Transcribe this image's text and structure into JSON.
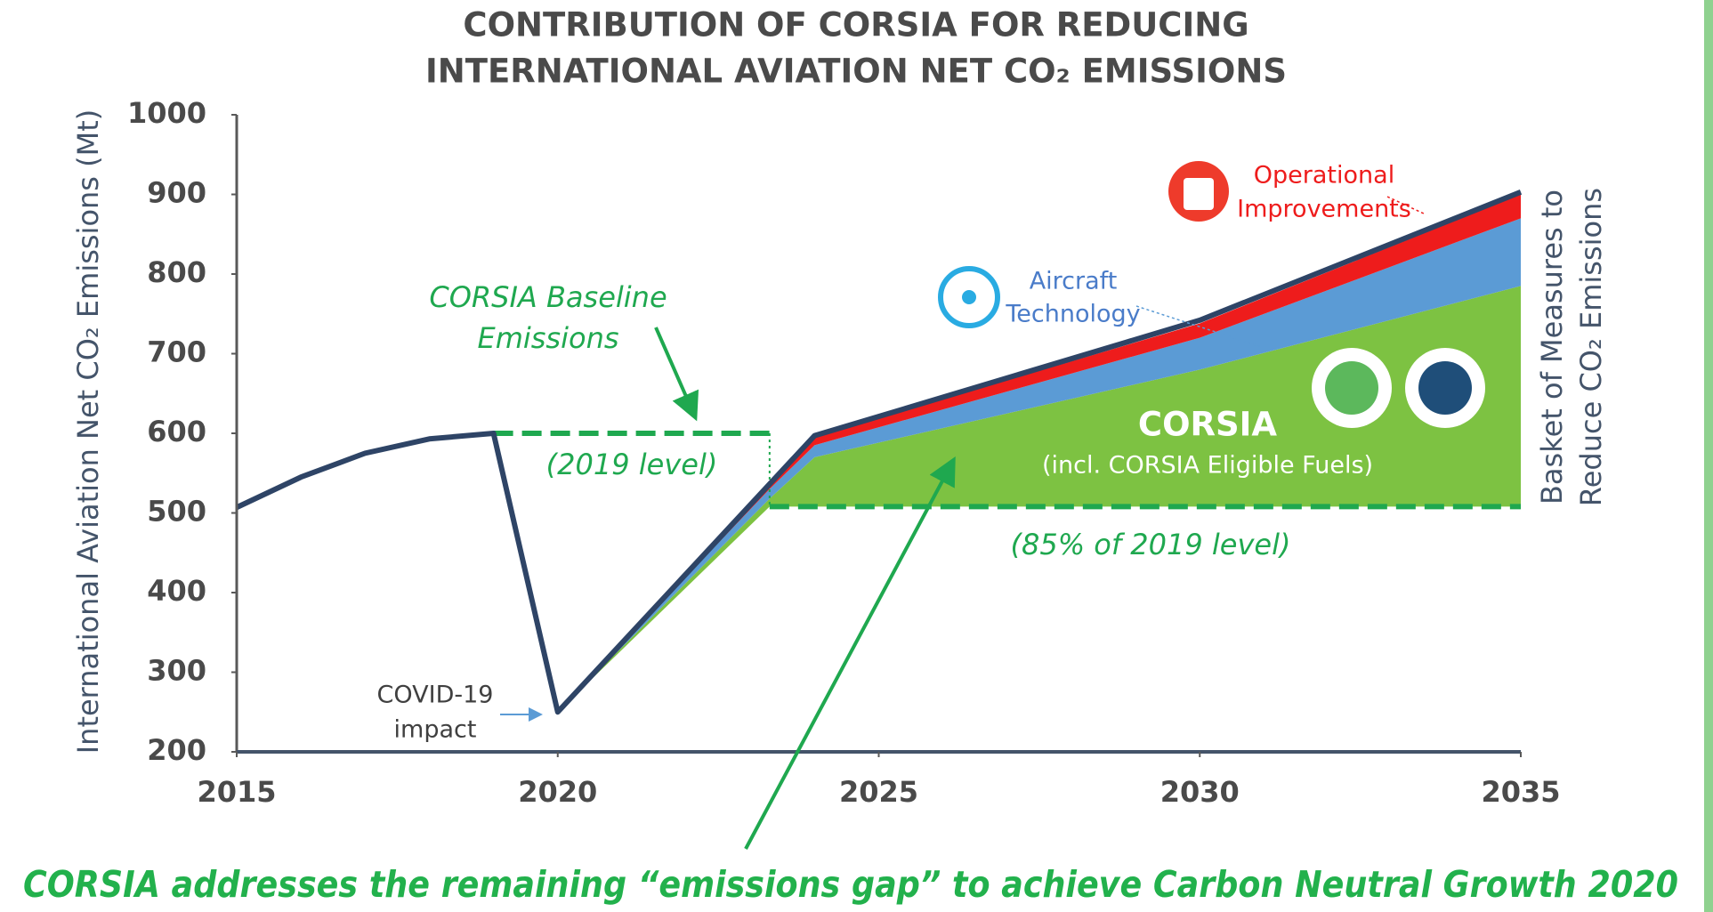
{
  "chart_data": {
    "type": "stacked-area",
    "title": [
      "CONTRIBUTION OF CORSIA FOR REDUCING",
      "INTERNATIONAL AVIATION NET CO₂ EMISSIONS"
    ],
    "ylabel": "International Aviation Net CO₂ Emissions (Mt)",
    "right_label": [
      "Basket of Measures to",
      "Reduce CO₂ Emissions"
    ],
    "xlim": [
      2015,
      2035
    ],
    "xticks": [
      2015,
      2020,
      2025,
      2030,
      2035
    ],
    "ylim": [
      200,
      1000
    ],
    "yticks": [
      200,
      300,
      400,
      500,
      600,
      700,
      800,
      900,
      1000
    ],
    "emissions": {
      "color": "#2e4466",
      "x": [
        2015,
        2016,
        2017,
        2018,
        2019,
        2020,
        2024,
        2030,
        2035
      ],
      "values": [
        507,
        545,
        575,
        593,
        600,
        250,
        597,
        742,
        903
      ]
    },
    "stack": {
      "x": [
        2020,
        2023.3,
        2024,
        2030,
        2035
      ],
      "base": [
        250,
        508,
        508,
        508,
        508
      ],
      "layers": [
        {
          "label_lines": [
            "CORSIA",
            "(incl. CORSIA Eligible Fuels)"
          ],
          "color": "#7dc242",
          "values": [
            0,
            10,
            62,
            172,
            277
          ]
        },
        {
          "label_lines": [
            "Aircraft",
            "Technology"
          ],
          "color": "#5b9bd5",
          "values": [
            0,
            12,
            15,
            40,
            85
          ]
        },
        {
          "label_lines": [
            "Operational",
            "Improvements"
          ],
          "color": "#ee1c1c",
          "values": [
            0,
            6,
            10,
            18,
            30
          ]
        }
      ]
    },
    "reference_lines": [
      {
        "label": "(2019 level)",
        "value": 600,
        "x": [
          2019,
          2023.3
        ]
      },
      {
        "label": "(85% of 2019 level)",
        "value": 508,
        "x": [
          2023.3,
          2035
        ]
      }
    ],
    "reference_color": "#1fa84f",
    "baseline_label": [
      "CORSIA Baseline",
      "Emissions"
    ],
    "covid_label": [
      "COVID-19",
      "impact"
    ],
    "footer": "CORSIA addresses the remaining “emissions gap” to achieve Carbon Neutral Growth 2020"
  }
}
